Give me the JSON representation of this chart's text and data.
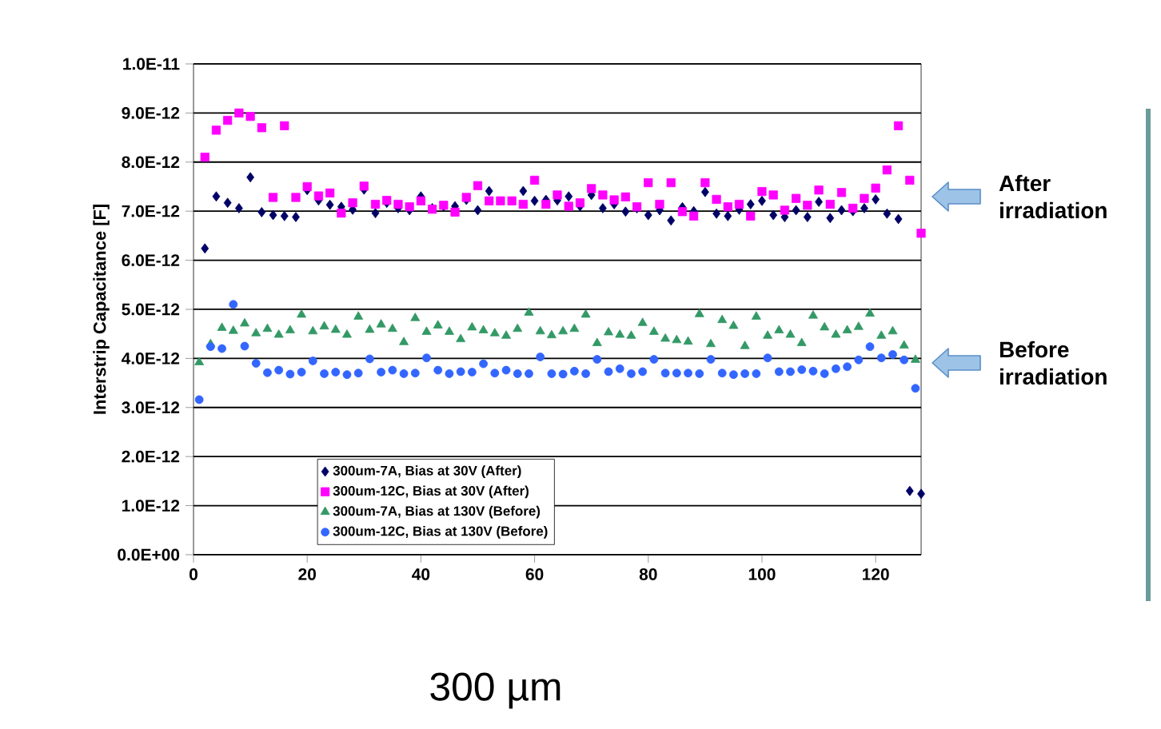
{
  "chart_data": {
    "type": "scatter",
    "ylabel": "Interstrip Capacitance [F]",
    "xlim": [
      0,
      128
    ],
    "xticks": [
      0,
      20,
      40,
      60,
      80,
      100,
      120
    ],
    "ylim": [
      0,
      1e-11
    ],
    "yticks": [
      {
        "value": 0,
        "label": "0.0E+00"
      },
      {
        "value": 1e-12,
        "label": "1.0E-12"
      },
      {
        "value": 2e-12,
        "label": "2.0E-12"
      },
      {
        "value": 3e-12,
        "label": "3.0E-12"
      },
      {
        "value": 4e-12,
        "label": "4.0E-12"
      },
      {
        "value": 5e-12,
        "label": "5.0E-12"
      },
      {
        "value": 6e-12,
        "label": "6.0E-12"
      },
      {
        "value": 7e-12,
        "label": "7.0E-12"
      },
      {
        "value": 8e-12,
        "label": "8.0E-12"
      },
      {
        "value": 9e-12,
        "label": "9.0E-12"
      },
      {
        "value": 1e-11,
        "label": "1.0E-11"
      }
    ],
    "grid": "y",
    "legend": "bottom left",
    "series": [
      {
        "name": "300um-7A, Bias at 30V (After)",
        "color": "#000066",
        "marker": "diamond",
        "x": [
          2,
          4,
          6,
          8,
          10,
          12,
          14,
          16,
          18,
          20,
          22,
          24,
          26,
          28,
          30,
          32,
          34,
          36,
          38,
          40,
          42,
          44,
          46,
          48,
          50,
          52,
          54,
          56,
          58,
          60,
          62,
          64,
          66,
          68,
          70,
          72,
          74,
          76,
          78,
          80,
          82,
          84,
          86,
          88,
          90,
          92,
          94,
          96,
          98,
          100,
          102,
          104,
          106,
          108,
          110,
          112,
          114,
          116,
          118,
          120,
          122,
          124,
          126,
          128
        ],
        "values": [
          6.24e-12,
          7.3e-12,
          7.17e-12,
          7.06e-12,
          7.69e-12,
          6.98e-12,
          6.92e-12,
          6.9e-12,
          6.88e-12,
          7.43e-12,
          7.22e-12,
          7.13e-12,
          7.09e-12,
          7.03e-12,
          7.44e-12,
          6.96e-12,
          7.17e-12,
          7.06e-12,
          7.02e-12,
          7.3e-12,
          7.06e-12,
          7.1e-12,
          7.1e-12,
          7.23e-12,
          7.02e-12,
          7.41e-12,
          null,
          null,
          7.41e-12,
          7.21e-12,
          7.23e-12,
          7.22e-12,
          7.3e-12,
          7.1e-12,
          7.33e-12,
          7.06e-12,
          7.14e-12,
          6.99e-12,
          7.06e-12,
          6.92e-12,
          7.02e-12,
          6.81e-12,
          7.08e-12,
          7e-12,
          7.39e-12,
          6.95e-12,
          6.9e-12,
          7.03e-12,
          7.14e-12,
          7.21e-12,
          6.92e-12,
          6.88e-12,
          7.02e-12,
          6.88e-12,
          7.19e-12,
          6.86e-12,
          7.02e-12,
          7e-12,
          7.06e-12,
          7.24e-12,
          6.95e-12,
          6.84e-12,
          1.3e-12,
          1.24e-12
        ]
      },
      {
        "name": "300um-12C, Bias at 30V (After)",
        "color": "#ff00ff",
        "marker": "square",
        "x": [
          2,
          4,
          6,
          8,
          10,
          12,
          14,
          16,
          18,
          20,
          22,
          24,
          26,
          28,
          30,
          32,
          34,
          36,
          38,
          40,
          42,
          44,
          46,
          48,
          50,
          52,
          54,
          56,
          58,
          60,
          62,
          64,
          66,
          68,
          70,
          72,
          74,
          76,
          78,
          80,
          82,
          84,
          86,
          88,
          90,
          92,
          94,
          96,
          98,
          100,
          102,
          104,
          106,
          108,
          110,
          112,
          114,
          116,
          118,
          120,
          122,
          124,
          126,
          128
        ],
        "values": [
          8.1e-12,
          8.65e-12,
          8.85e-12,
          9e-12,
          8.93e-12,
          8.7e-12,
          7.28e-12,
          8.74e-12,
          7.28e-12,
          7.5e-12,
          7.31e-12,
          7.37e-12,
          6.96e-12,
          7.17e-12,
          7.51e-12,
          7.14e-12,
          7.22e-12,
          7.14e-12,
          7.09e-12,
          7.21e-12,
          7.04e-12,
          7.12e-12,
          6.98e-12,
          7.28e-12,
          7.52e-12,
          7.21e-12,
          7.21e-12,
          7.21e-12,
          7.14e-12,
          7.63e-12,
          7.14e-12,
          7.33e-12,
          7.1e-12,
          7.17e-12,
          7.46e-12,
          7.33e-12,
          7.23e-12,
          7.29e-12,
          7.09e-12,
          7.58e-12,
          7.14e-12,
          7.58e-12,
          6.99e-12,
          6.9e-12,
          7.58e-12,
          7.24e-12,
          7.09e-12,
          7.14e-12,
          6.9e-12,
          7.4e-12,
          7.33e-12,
          7.02e-12,
          7.26e-12,
          7.12e-12,
          7.43e-12,
          7.14e-12,
          7.38e-12,
          7.06e-12,
          7.26e-12,
          7.47e-12,
          7.84e-12,
          8.74e-12,
          7.63e-12,
          6.55e-12
        ]
      },
      {
        "name": "300um-7A, Bias at 130V (Before)",
        "color": "#339966",
        "marker": "triangle",
        "x": [
          1,
          3,
          5,
          7,
          9,
          11,
          13,
          15,
          17,
          19,
          21,
          23,
          25,
          27,
          29,
          31,
          33,
          35,
          37,
          39,
          41,
          43,
          45,
          47,
          49,
          51,
          53,
          55,
          57,
          59,
          61,
          63,
          65,
          67,
          69,
          71,
          73,
          75,
          77,
          79,
          81,
          83,
          85,
          87,
          89,
          91,
          93,
          95,
          97,
          99,
          101,
          103,
          105,
          107,
          109,
          111,
          113,
          115,
          117,
          119,
          121,
          123,
          125,
          127
        ],
        "values": [
          3.92e-12,
          4.29e-12,
          4.62e-12,
          4.56e-12,
          4.71e-12,
          4.51e-12,
          4.6e-12,
          4.48e-12,
          4.57e-12,
          4.89e-12,
          4.55e-12,
          4.65e-12,
          4.58e-12,
          4.48e-12,
          4.85e-12,
          4.58e-12,
          4.69e-12,
          4.6e-12,
          4.33e-12,
          4.82e-12,
          4.54e-12,
          4.67e-12,
          4.54e-12,
          4.39e-12,
          4.63e-12,
          4.57e-12,
          4.51e-12,
          4.46e-12,
          4.6e-12,
          4.93e-12,
          4.55e-12,
          4.47e-12,
          4.55e-12,
          4.6e-12,
          4.89e-12,
          4.31e-12,
          4.53e-12,
          4.48e-12,
          4.46e-12,
          4.72e-12,
          4.54e-12,
          4.4e-12,
          4.37e-12,
          4.34e-12,
          4.9e-12,
          4.29e-12,
          4.78e-12,
          4.66e-12,
          4.25e-12,
          4.85e-12,
          4.46e-12,
          4.57e-12,
          4.48e-12,
          4.31e-12,
          4.87e-12,
          4.63e-12,
          4.48e-12,
          4.57e-12,
          4.64e-12,
          4.91e-12,
          4.46e-12,
          4.55e-12,
          4.26e-12,
          3.97e-12
        ]
      },
      {
        "name": "300um-12C, Bias at 130V (Before)",
        "color": "#3366ff",
        "marker": "circle",
        "x": [
          1,
          3,
          5,
          7,
          9,
          11,
          13,
          15,
          17,
          19,
          21,
          23,
          25,
          27,
          29,
          31,
          33,
          35,
          37,
          39,
          41,
          43,
          45,
          47,
          49,
          51,
          53,
          55,
          57,
          59,
          61,
          63,
          65,
          67,
          69,
          71,
          73,
          75,
          77,
          79,
          81,
          83,
          85,
          87,
          89,
          91,
          93,
          95,
          97,
          99,
          101,
          103,
          105,
          107,
          109,
          111,
          113,
          115,
          117,
          119,
          121,
          123,
          125,
          127
        ],
        "values": [
          3.16e-12,
          4.24e-12,
          4.2e-12,
          5.1e-12,
          4.25e-12,
          3.9e-12,
          3.71e-12,
          3.76e-12,
          3.68e-12,
          3.72e-12,
          3.95e-12,
          3.69e-12,
          3.72e-12,
          3.67e-12,
          3.7e-12,
          3.99e-12,
          3.72e-12,
          3.76e-12,
          3.69e-12,
          3.7e-12,
          4.01e-12,
          3.76e-12,
          3.69e-12,
          3.73e-12,
          3.72e-12,
          3.89e-12,
          3.7e-12,
          3.76e-12,
          3.69e-12,
          3.69e-12,
          4.03e-12,
          3.69e-12,
          3.68e-12,
          3.74e-12,
          3.69e-12,
          3.98e-12,
          3.73e-12,
          3.79e-12,
          3.69e-12,
          3.73e-12,
          3.98e-12,
          3.7e-12,
          3.7e-12,
          3.7e-12,
          3.69e-12,
          3.98e-12,
          3.7e-12,
          3.67e-12,
          3.69e-12,
          3.69e-12,
          4.01e-12,
          3.73e-12,
          3.73e-12,
          3.77e-12,
          3.74e-12,
          3.69e-12,
          3.79e-12,
          3.83e-12,
          3.97e-12,
          4.24e-12,
          4.01e-12,
          4.08e-12,
          3.97e-12,
          3.39e-12
        ]
      }
    ],
    "annotations": [
      "After irradiation",
      "Before irradiation",
      "300 µm"
    ]
  }
}
